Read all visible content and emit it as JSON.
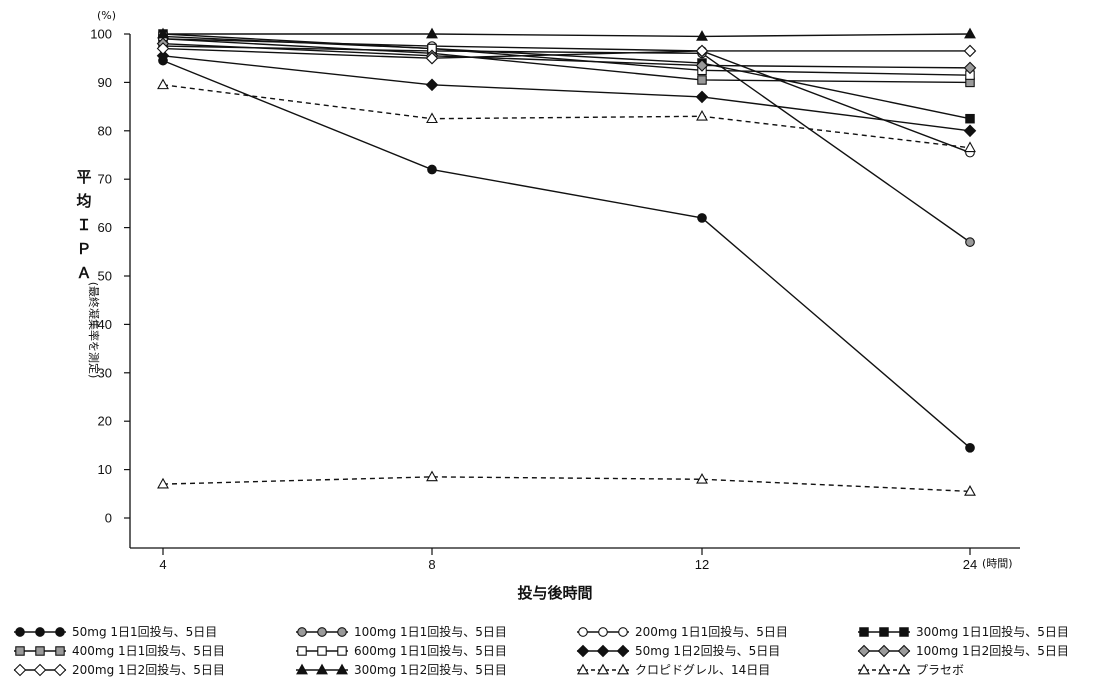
{
  "chart_data": {
    "type": "line",
    "x": [
      4,
      8,
      12,
      24
    ],
    "x_ticks": [
      "4",
      "8",
      "12",
      "24"
    ],
    "x_unit": "(時間)",
    "xlabel": "投与後時間",
    "ylabel_main": "平均ＩＰＡ",
    "ylabel_sub": "(最終凝集率を測定)",
    "y_unit": "(%)",
    "ylim": [
      0,
      100
    ],
    "y_ticks": [
      0,
      10,
      20,
      30,
      40,
      50,
      60,
      70,
      80,
      90,
      100
    ],
    "grid": false,
    "legend_position": "bottom",
    "series": [
      {
        "name": "50mg 1日1回投与、5日目",
        "marker": "circle",
        "fill": "filled",
        "dash": "solid",
        "values": [
          94.5,
          72,
          62,
          14.5
        ]
      },
      {
        "name": "100mg 1日1回投与、5日目",
        "marker": "circle",
        "fill": "gray",
        "dash": "solid",
        "values": [
          97.5,
          96.5,
          96,
          57
        ]
      },
      {
        "name": "200mg 1日1回投与、5日目",
        "marker": "circle",
        "fill": "open",
        "dash": "solid",
        "values": [
          99,
          97.5,
          96.5,
          75.5
        ]
      },
      {
        "name": "300mg 1日1回投与、5日目",
        "marker": "square",
        "fill": "filled",
        "dash": "solid",
        "values": [
          100,
          97,
          94,
          82.5
        ]
      },
      {
        "name": "400mg 1日1回投与、5日目",
        "marker": "square",
        "fill": "gray",
        "dash": "solid",
        "values": [
          99,
          96,
          90.5,
          90
        ]
      },
      {
        "name": "600mg 1日1回投与、5日目",
        "marker": "square",
        "fill": "open",
        "dash": "solid",
        "values": [
          99.5,
          97,
          92.5,
          91.5
        ]
      },
      {
        "name": "50mg 1日2回投与、5日目",
        "marker": "diamond",
        "fill": "filled",
        "dash": "solid",
        "values": [
          95.5,
          89.5,
          87,
          80
        ]
      },
      {
        "name": "100mg 1日2回投与、5日目",
        "marker": "diamond",
        "fill": "gray",
        "dash": "solid",
        "values": [
          98,
          95.5,
          93.5,
          93
        ]
      },
      {
        "name": "200mg 1日2回投与、5日目",
        "marker": "diamond",
        "fill": "open",
        "dash": "solid",
        "values": [
          97,
          95,
          96.5,
          96.5
        ]
      },
      {
        "name": "300mg 1日2回投与、5日目",
        "marker": "triangle",
        "fill": "filled",
        "dash": "solid",
        "values": [
          100,
          100,
          99.5,
          100
        ]
      },
      {
        "name": "クロピドグレル、14日目",
        "marker": "triangle",
        "fill": "open",
        "dash": "dashed",
        "values": [
          89.5,
          82.5,
          83,
          76.5
        ]
      },
      {
        "name": "プラセボ",
        "marker": "triangle",
        "fill": "open",
        "dash": "dashed",
        "values": [
          7,
          8.5,
          8,
          5.5
        ]
      }
    ]
  }
}
